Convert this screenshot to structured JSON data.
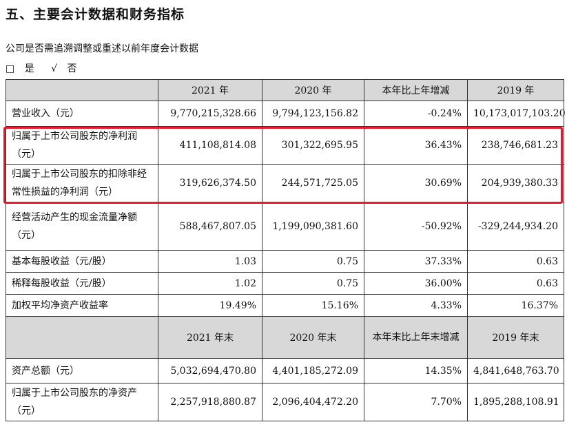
{
  "section_title": "五、主要会计数据和财务指标",
  "restate_question": "公司是否需追溯调整或重述以前年度会计数据",
  "options": [
    {
      "mark": "□",
      "label": "是"
    },
    {
      "mark": "√",
      "label": "否"
    }
  ],
  "table1": {
    "headers": [
      "",
      "2021 年",
      "2020 年",
      "本年比上年增减",
      "2019 年"
    ],
    "rows": [
      {
        "label": "营业收入（元）",
        "values": [
          "9,770,215,328.66",
          "9,794,123,156.82",
          "-0.24%",
          "10,173,017,103.20"
        ]
      },
      {
        "label": "归属于上市公司股东的净利润（元）",
        "values": [
          "411,108,814.08",
          "301,322,695.95",
          "36.43%",
          "238,746,681.23"
        ]
      },
      {
        "label": "归属于上市公司股东的扣除非经常性损益的净利润（元）",
        "values": [
          "319,626,374.50",
          "244,571,725.05",
          "30.69%",
          "204,939,380.33"
        ]
      },
      {
        "label": "经营活动产生的现金流量净额（元）",
        "values": [
          "588,467,807.05",
          "1,199,090,381.60",
          "-50.92%",
          "-329,244,934.20"
        ]
      },
      {
        "label": "基本每股收益（元/股）",
        "values": [
          "1.03",
          "0.75",
          "37.33%",
          "0.63"
        ]
      },
      {
        "label": "稀释每股收益（元/股）",
        "values": [
          "1.02",
          "0.75",
          "36.00%",
          "0.63"
        ]
      },
      {
        "label": "加权平均净资产收益率",
        "values": [
          "19.49%",
          "15.16%",
          "4.33%",
          "16.37%"
        ]
      }
    ]
  },
  "table2": {
    "headers": [
      "",
      "2021 年末",
      "2020 年末",
      "本年末比上年末增减",
      "2019 年末"
    ],
    "rows": [
      {
        "label": "资产总额（元）",
        "values": [
          "5,032,694,470.80",
          "4,401,185,272.09",
          "14.35%",
          "4,841,648,763.70"
        ]
      },
      {
        "label": "归属于上市公司股东的净资产（元）",
        "values": [
          "2,257,918,880.87",
          "2,096,404,472.20",
          "7.70%",
          "1,895,288,108.91"
        ]
      }
    ]
  },
  "highlight_color": "#e8192c"
}
